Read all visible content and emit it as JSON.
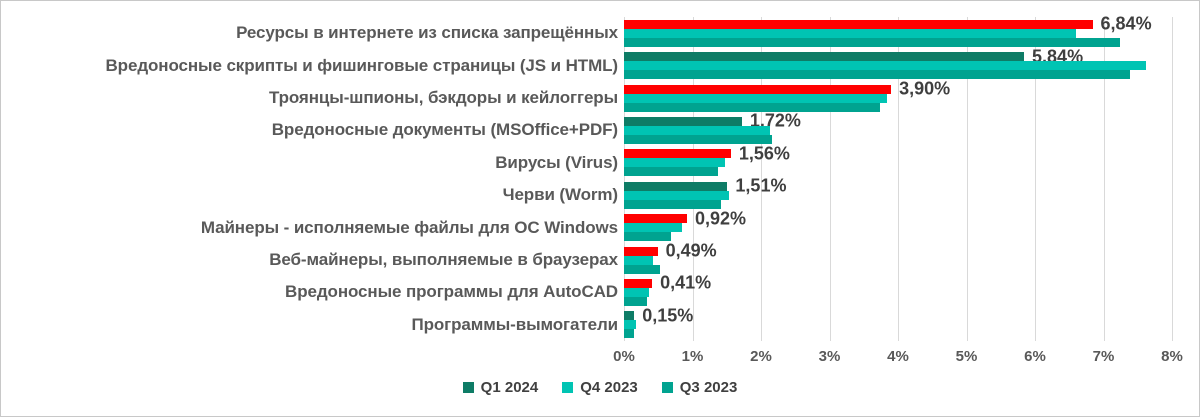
{
  "chart_data": {
    "type": "bar",
    "orientation": "horizontal",
    "title": "",
    "xlabel": "",
    "ylabel": "",
    "xlim": [
      0,
      8
    ],
    "x_ticks": [
      "0%",
      "1%",
      "2%",
      "3%",
      "4%",
      "5%",
      "6%",
      "7%",
      "8%"
    ],
    "grid": true,
    "legend_position": "bottom",
    "categories": [
      "Ресурсы в интернете из списка запрещённых",
      "Вредоносные скрипты и фишинговые страницы (JS и HTML)",
      "Троянцы-шпионы, бэкдоры и кейлоггеры",
      "Вредоносные документы (MSOffice+PDF)",
      "Вирусы (Virus)",
      "Черви (Worm)",
      "Майнеры - исполняемые файлы для ОС Windows",
      "Веб-майнеры, выполняемые в браузерах",
      "Вредоносные программы для AutoCAD",
      "Программы-вымогатели"
    ],
    "series": [
      {
        "name": "Q1 2024",
        "legend_color": "#0e7c66",
        "values": [
          6.84,
          5.84,
          3.9,
          1.72,
          1.56,
          1.51,
          0.92,
          0.49,
          0.41,
          0.15
        ],
        "bar_colors": [
          "#ff0000",
          "#0e7c66",
          "#ff0000",
          "#0e7c66",
          "#ff0000",
          "#0e7c66",
          "#ff0000",
          "#ff0000",
          "#ff0000",
          "#0e7c66"
        ],
        "data_labels": [
          "6,84%",
          "5,84%",
          "3,90%",
          "1,72%",
          "1,56%",
          "1,51%",
          "0,92%",
          "0,49%",
          "0,41%",
          "0,15%"
        ]
      },
      {
        "name": "Q4 2023",
        "legend_color": "#00c4b3",
        "values": [
          6.6,
          7.62,
          3.84,
          2.13,
          1.48,
          1.54,
          0.84,
          0.43,
          0.36,
          0.18
        ],
        "bar_colors": null,
        "data_labels": null
      },
      {
        "name": "Q3 2023",
        "legend_color": "#00a390",
        "values": [
          7.24,
          7.38,
          3.74,
          2.16,
          1.37,
          1.41,
          0.68,
          0.53,
          0.34,
          0.14
        ],
        "bar_colors": null,
        "data_labels": null
      }
    ],
    "legend": [
      {
        "label": "Q1 2024",
        "color": "#0e7c66"
      },
      {
        "label": "Q4 2023",
        "color": "#00c4b3"
      },
      {
        "label": "Q3 2023",
        "color": "#00a390"
      }
    ],
    "colors": {
      "increase_highlight": "#ff0000",
      "gridline": "#d9d9d9",
      "category_text": "#595959",
      "value_text": "#3f3f3f",
      "tick_text": "#595959",
      "legend_text": "#404040",
      "frame_border": "#c8c8c8",
      "background": "#ffffff"
    }
  }
}
